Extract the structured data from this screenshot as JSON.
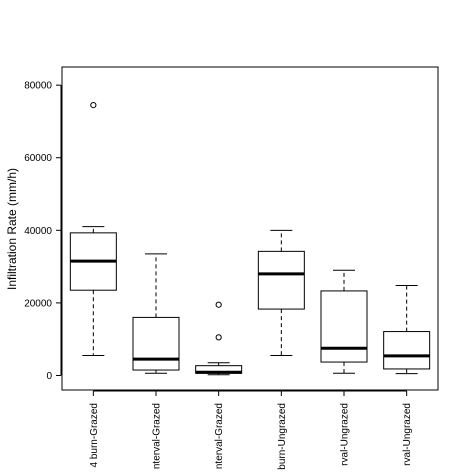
{
  "chart_data": {
    "type": "box",
    "title": "",
    "xlabel": "",
    "ylabel": "Infiltration Rate (mm/h)",
    "ylim": [
      -4000,
      85000
    ],
    "yticks": [
      0,
      20000,
      40000,
      60000,
      80000
    ],
    "ytick_labels": [
      "0",
      "20000",
      "40000",
      "60000",
      "80000"
    ],
    "grid": false,
    "legend": "none",
    "categories": [
      "4 burn-Grazed",
      "nterval-Grazed",
      "nterval-Grazed",
      "burn-Ungrazed",
      "rval-Ungrazed",
      "rval-Ungrazed"
    ],
    "boxes": [
      {
        "min": 5500,
        "q1": 23500,
        "median": 31500,
        "q3": 39300,
        "max": 41000,
        "outliers": [
          74500
        ]
      },
      {
        "min": 600,
        "q1": 1500,
        "median": 4500,
        "q3": 16000,
        "max": 33500,
        "outliers": []
      },
      {
        "min": 200,
        "q1": 600,
        "median": 900,
        "q3": 2700,
        "max": 3500,
        "outliers": [
          10500,
          19500
        ]
      },
      {
        "min": 5500,
        "q1": 18300,
        "median": 28000,
        "q3": 34200,
        "max": 40000,
        "outliers": []
      },
      {
        "min": 600,
        "q1": 3700,
        "median": 7500,
        "q3": 23300,
        "max": 29000,
        "outliers": []
      },
      {
        "min": 500,
        "q1": 1800,
        "median": 5400,
        "q3": 12100,
        "max": 24800,
        "outliers": []
      }
    ]
  }
}
